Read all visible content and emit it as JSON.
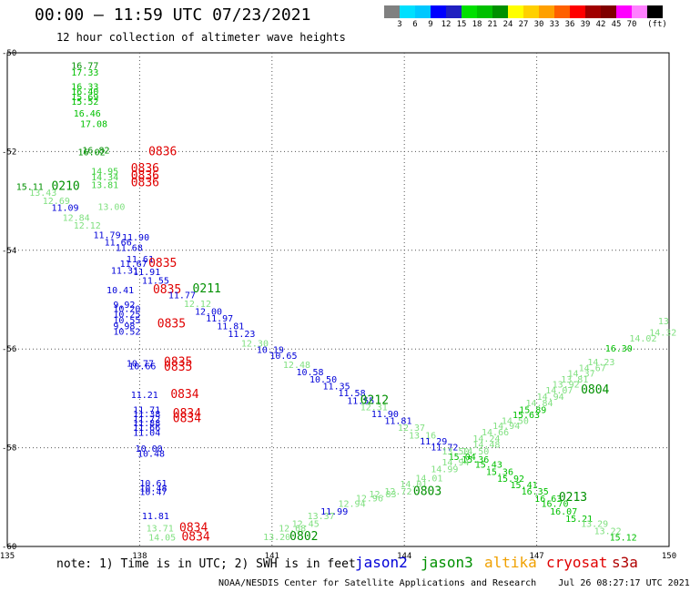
{
  "header": {
    "title": "00:00 – 11:59 UTC 07/23/2021",
    "subtitle": "12 hour collection of altimeter wave heights"
  },
  "colorbar": {
    "unit": "(ft)",
    "colors": [
      "#808080",
      "#00e0ff",
      "#00c8ff",
      "#0000ff",
      "#2020c0",
      "#00e000",
      "#00c000",
      "#009000",
      "#ffff00",
      "#ffd000",
      "#ffa000",
      "#ff6000",
      "#ff0000",
      "#a00000",
      "#800000",
      "#ff00ff",
      "#ff80ff",
      "#000000"
    ],
    "labels": [
      "3",
      "6",
      "9",
      "12",
      "15",
      "18",
      "21",
      "24",
      "27",
      "30",
      "33",
      "36",
      "39",
      "42",
      "45",
      "70"
    ]
  },
  "axes": {
    "lon": {
      "min": 135,
      "max": 150,
      "ticks": [
        "135",
        "138",
        "141",
        "144",
        "147",
        "150"
      ]
    },
    "lat": {
      "min": -60,
      "max": -50,
      "ticks": [
        "-50",
        "-52",
        "-54",
        "-56",
        "-58",
        "-60"
      ]
    }
  },
  "map_data": {
    "labels": [
      {
        "t": "16.77",
        "lon": 136.45,
        "lat": -50.32,
        "c": "#009000"
      },
      {
        "t": "17.33",
        "lon": 136.45,
        "lat": -50.46,
        "c": "#00c000"
      },
      {
        "t": "16.33",
        "lon": 136.45,
        "lat": -50.75,
        "c": "#00c000"
      },
      {
        "t": "16.40",
        "lon": 136.45,
        "lat": -50.85,
        "c": "#00c000"
      },
      {
        "t": "15.69",
        "lon": 136.45,
        "lat": -50.96,
        "c": "#00c000"
      },
      {
        "t": "15.52",
        "lon": 136.45,
        "lat": -51.05,
        "c": "#00c000"
      },
      {
        "t": "16.46",
        "lon": 136.5,
        "lat": -51.29,
        "c": "#00c000"
      },
      {
        "t": "17.08",
        "lon": 136.65,
        "lat": -51.5,
        "c": "#00c000"
      },
      {
        "t": "16.82",
        "lon": 136.7,
        "lat": -52.04,
        "c": "#009000"
      },
      {
        "t": "16.02",
        "lon": 136.6,
        "lat": -52.08,
        "c": "#009000"
      },
      {
        "t": "0836",
        "lon": 138.2,
        "lat": -52.08,
        "c": "#e00000",
        "big": 1
      },
      {
        "t": "14.95",
        "lon": 136.9,
        "lat": -52.46,
        "c": "#40d040"
      },
      {
        "t": "14.34",
        "lon": 136.9,
        "lat": -52.58,
        "c": "#40d040"
      },
      {
        "t": "13.81",
        "lon": 136.9,
        "lat": -52.74,
        "c": "#40d040"
      },
      {
        "t": "0836",
        "lon": 137.8,
        "lat": -52.42,
        "c": "#e00000",
        "big": 1
      },
      {
        "t": "0836",
        "lon": 137.8,
        "lat": -52.56,
        "c": "#e00000",
        "big": 1
      },
      {
        "t": "0836",
        "lon": 137.8,
        "lat": -52.7,
        "c": "#e00000",
        "big": 1
      },
      {
        "t": "15.11",
        "lon": 135.2,
        "lat": -52.78,
        "c": "#009000"
      },
      {
        "t": "0210",
        "lon": 136.0,
        "lat": -52.78,
        "c": "#009000",
        "big": 1
      },
      {
        "t": "13.43",
        "lon": 135.5,
        "lat": -52.9,
        "c": "#80e080"
      },
      {
        "t": "12.69",
        "lon": 135.8,
        "lat": -53.06,
        "c": "#80e080"
      },
      {
        "t": "11.09",
        "lon": 136.0,
        "lat": -53.2,
        "c": "#0000d8"
      },
      {
        "t": "13.00",
        "lon": 137.05,
        "lat": -53.18,
        "c": "#80e080"
      },
      {
        "t": "12.84",
        "lon": 136.25,
        "lat": -53.4,
        "c": "#80e080"
      },
      {
        "t": "12.12",
        "lon": 136.5,
        "lat": -53.56,
        "c": "#80e080"
      },
      {
        "t": "11.79",
        "lon": 136.95,
        "lat": -53.75,
        "c": "#0000d8"
      },
      {
        "t": "11.90",
        "lon": 137.6,
        "lat": -53.8,
        "c": "#0000d8"
      },
      {
        "t": "11.66",
        "lon": 137.2,
        "lat": -53.9,
        "c": "#0000d8"
      },
      {
        "t": "11.68",
        "lon": 137.45,
        "lat": -54.01,
        "c": "#0000d8"
      },
      {
        "t": "11.61",
        "lon": 137.7,
        "lat": -54.24,
        "c": "#0000d8"
      },
      {
        "t": "11.67",
        "lon": 137.55,
        "lat": -54.34,
        "c": "#0000d8"
      },
      {
        "t": "0835",
        "lon": 138.2,
        "lat": -54.34,
        "c": "#e00000",
        "big": 1
      },
      {
        "t": "11.31",
        "lon": 137.35,
        "lat": -54.47,
        "c": "#0000d8"
      },
      {
        "t": "11.91",
        "lon": 137.85,
        "lat": -54.5,
        "c": "#0000d8"
      },
      {
        "t": "11.55",
        "lon": 138.05,
        "lat": -54.68,
        "c": "#0000d8"
      },
      {
        "t": "10.41",
        "lon": 137.25,
        "lat": -54.87,
        "c": "#0000d8"
      },
      {
        "t": "0835",
        "lon": 138.3,
        "lat": -54.87,
        "c": "#e00000",
        "big": 1
      },
      {
        "t": "11.77",
        "lon": 138.65,
        "lat": -54.97,
        "c": "#0000d8"
      },
      {
        "t": "0211",
        "lon": 139.2,
        "lat": -54.85,
        "c": "#009000",
        "big": 1
      },
      {
        "t": "9.92",
        "lon": 137.4,
        "lat": -55.17,
        "c": "#0000d8"
      },
      {
        "t": "12.12",
        "lon": 139.0,
        "lat": -55.15,
        "c": "#80e080"
      },
      {
        "t": "10.20",
        "lon": 137.4,
        "lat": -55.25,
        "c": "#0000d8"
      },
      {
        "t": "12.00",
        "lon": 139.25,
        "lat": -55.3,
        "c": "#0000d8"
      },
      {
        "t": "10.25",
        "lon": 137.4,
        "lat": -55.36,
        "c": "#0000d8"
      },
      {
        "t": "11.97",
        "lon": 139.5,
        "lat": -55.44,
        "c": "#0000d8"
      },
      {
        "t": "10.55",
        "lon": 137.4,
        "lat": -55.48,
        "c": "#0000d8"
      },
      {
        "t": "0835",
        "lon": 138.4,
        "lat": -55.56,
        "c": "#e00000",
        "big": 1
      },
      {
        "t": "9.98",
        "lon": 137.4,
        "lat": -55.6,
        "c": "#0000d8"
      },
      {
        "t": "11.81",
        "lon": 139.75,
        "lat": -55.6,
        "c": "#0000d8"
      },
      {
        "t": "10.52",
        "lon": 137.4,
        "lat": -55.71,
        "c": "#0000d8"
      },
      {
        "t": "11.23",
        "lon": 140.0,
        "lat": -55.76,
        "c": "#0000d8"
      },
      {
        "t": "12.30",
        "lon": 140.3,
        "lat": -55.95,
        "c": "#80e080"
      },
      {
        "t": "10.19",
        "lon": 140.65,
        "lat": -56.08,
        "c": "#0000d8"
      },
      {
        "t": "10.65",
        "lon": 140.95,
        "lat": -56.2,
        "c": "#0000d8"
      },
      {
        "t": "10.77",
        "lon": 137.7,
        "lat": -56.36,
        "c": "#0000d8"
      },
      {
        "t": "10.66",
        "lon": 137.75,
        "lat": -56.41,
        "c": "#0000d8"
      },
      {
        "t": "0835",
        "lon": 138.55,
        "lat": -56.34,
        "c": "#e00000",
        "big": 1
      },
      {
        "t": "0835",
        "lon": 138.55,
        "lat": -56.44,
        "c": "#e00000",
        "big": 1
      },
      {
        "t": "12.48",
        "lon": 141.25,
        "lat": -56.38,
        "c": "#80e080"
      },
      {
        "t": "10.58",
        "lon": 141.55,
        "lat": -56.53,
        "c": "#0000d8"
      },
      {
        "t": "10.50",
        "lon": 141.85,
        "lat": -56.68,
        "c": "#0000d8"
      },
      {
        "t": "11.35",
        "lon": 142.15,
        "lat": -56.82,
        "c": "#0000d8"
      },
      {
        "t": "11.21",
        "lon": 137.8,
        "lat": -56.99,
        "c": "#0000d8"
      },
      {
        "t": "0834",
        "lon": 138.7,
        "lat": -56.99,
        "c": "#e00000",
        "big": 1
      },
      {
        "t": "11.58",
        "lon": 142.5,
        "lat": -56.96,
        "c": "#0000d8"
      },
      {
        "t": "11.55",
        "lon": 142.7,
        "lat": -57.11,
        "c": "#0000d8"
      },
      {
        "t": "0212",
        "lon": 143.0,
        "lat": -57.11,
        "c": "#009000",
        "big": 1
      },
      {
        "t": "12.31",
        "lon": 143.0,
        "lat": -57.24,
        "c": "#80e080"
      },
      {
        "t": "11.71",
        "lon": 137.85,
        "lat": -57.3,
        "c": "#0000d8"
      },
      {
        "t": "11.38",
        "lon": 137.85,
        "lat": -57.38,
        "c": "#0000d8"
      },
      {
        "t": "0834",
        "lon": 138.75,
        "lat": -57.38,
        "c": "#e00000",
        "big": 1
      },
      {
        "t": "11.90",
        "lon": 143.25,
        "lat": -57.38,
        "c": "#0000d8"
      },
      {
        "t": "11.72",
        "lon": 137.85,
        "lat": -57.48,
        "c": "#0000d8"
      },
      {
        "t": "0834",
        "lon": 138.75,
        "lat": -57.48,
        "c": "#e00000",
        "big": 1
      },
      {
        "t": "11.81",
        "lon": 143.55,
        "lat": -57.52,
        "c": "#0000d8"
      },
      {
        "t": "11.88",
        "lon": 137.85,
        "lat": -57.56,
        "c": "#0000d8"
      },
      {
        "t": "11.66",
        "lon": 137.85,
        "lat": -57.66,
        "c": "#0000d8"
      },
      {
        "t": "12.37",
        "lon": 143.85,
        "lat": -57.66,
        "c": "#80e080"
      },
      {
        "t": "11.04",
        "lon": 137.85,
        "lat": -57.76,
        "c": "#0000d8"
      },
      {
        "t": "13.16",
        "lon": 144.1,
        "lat": -57.81,
        "c": "#80e080"
      },
      {
        "t": "11.29",
        "lon": 144.35,
        "lat": -57.93,
        "c": "#0000d8"
      },
      {
        "t": "11.72",
        "lon": 144.6,
        "lat": -58.05,
        "c": "#0000d8"
      },
      {
        "t": "10.00",
        "lon": 137.9,
        "lat": -58.08,
        "c": "#0000d8"
      },
      {
        "t": "10.48",
        "lon": 137.95,
        "lat": -58.18,
        "c": "#0000d8"
      },
      {
        "t": "13.50",
        "lon": 144.85,
        "lat": -58.14,
        "c": "#80e080"
      },
      {
        "t": "14.50",
        "lon": 145.3,
        "lat": -58.14,
        "c": "#80e080"
      },
      {
        "t": "14.48",
        "lon": 145.55,
        "lat": -58.0,
        "c": "#80e080"
      },
      {
        "t": "15.04",
        "lon": 145.0,
        "lat": -58.25,
        "c": "#00c000"
      },
      {
        "t": "15.36",
        "lon": 145.3,
        "lat": -58.3,
        "c": "#00c000"
      },
      {
        "t": "14.94",
        "lon": 144.85,
        "lat": -58.36,
        "c": "#80e080"
      },
      {
        "t": "15.43",
        "lon": 145.6,
        "lat": -58.4,
        "c": "#00c000"
      },
      {
        "t": "15.36",
        "lon": 145.85,
        "lat": -58.55,
        "c": "#00c000"
      },
      {
        "t": "14.99",
        "lon": 144.6,
        "lat": -58.5,
        "c": "#80e080"
      },
      {
        "t": "15.92",
        "lon": 146.1,
        "lat": -58.69,
        "c": "#00c000"
      },
      {
        "t": "14.01",
        "lon": 144.25,
        "lat": -58.68,
        "c": "#80e080"
      },
      {
        "t": "10.61",
        "lon": 138.0,
        "lat": -58.78,
        "c": "#0000d8"
      },
      {
        "t": "10.48",
        "lon": 138.0,
        "lat": -58.88,
        "c": "#0000d8"
      },
      {
        "t": "10.47",
        "lon": 138.0,
        "lat": -58.96,
        "c": "#0000d8"
      },
      {
        "t": "14.01",
        "lon": 143.9,
        "lat": -58.8,
        "c": "#80e080"
      },
      {
        "t": "15.41",
        "lon": 146.4,
        "lat": -58.82,
        "c": "#00c000"
      },
      {
        "t": "12.72",
        "lon": 143.55,
        "lat": -58.95,
        "c": "#80e080"
      },
      {
        "t": "0803",
        "lon": 144.2,
        "lat": -58.96,
        "c": "#009000",
        "big": 1
      },
      {
        "t": "12.83",
        "lon": 143.2,
        "lat": -59.0,
        "c": "#80e080"
      },
      {
        "t": "16.35",
        "lon": 146.65,
        "lat": -58.95,
        "c": "#00c000"
      },
      {
        "t": "12.96",
        "lon": 142.9,
        "lat": -59.09,
        "c": "#80e080"
      },
      {
        "t": "16.63",
        "lon": 146.95,
        "lat": -59.1,
        "c": "#00c000"
      },
      {
        "t": "0213",
        "lon": 147.5,
        "lat": -59.08,
        "c": "#009000",
        "big": 1
      },
      {
        "t": "12.94",
        "lon": 142.5,
        "lat": -59.2,
        "c": "#80e080"
      },
      {
        "t": "16.70",
        "lon": 147.1,
        "lat": -59.2,
        "c": "#00c000"
      },
      {
        "t": "11.99",
        "lon": 142.1,
        "lat": -59.35,
        "c": "#0000d8"
      },
      {
        "t": "16.07",
        "lon": 147.3,
        "lat": -59.35,
        "c": "#00c000"
      },
      {
        "t": "13.37",
        "lon": 141.8,
        "lat": -59.45,
        "c": "#80e080"
      },
      {
        "t": "11.81",
        "lon": 138.05,
        "lat": -59.45,
        "c": "#0000d8"
      },
      {
        "t": "15.21",
        "lon": 147.65,
        "lat": -59.5,
        "c": "#00c000"
      },
      {
        "t": "12.45",
        "lon": 141.45,
        "lat": -59.6,
        "c": "#80e080"
      },
      {
        "t": "13.29",
        "lon": 148.0,
        "lat": -59.6,
        "c": "#80e080"
      },
      {
        "t": "13.71",
        "lon": 138.15,
        "lat": -59.7,
        "c": "#80e080"
      },
      {
        "t": "0834",
        "lon": 138.9,
        "lat": -59.7,
        "c": "#e00000",
        "big": 1
      },
      {
        "t": "12.68",
        "lon": 141.15,
        "lat": -59.7,
        "c": "#80e080"
      },
      {
        "t": "13.22",
        "lon": 148.3,
        "lat": -59.75,
        "c": "#80e080"
      },
      {
        "t": "13.20",
        "lon": 140.8,
        "lat": -59.87,
        "c": "#80e080"
      },
      {
        "t": "0802",
        "lon": 141.4,
        "lat": -59.87,
        "c": "#009000",
        "big": 1
      },
      {
        "t": "14.05",
        "lon": 138.2,
        "lat": -59.88,
        "c": "#80e080"
      },
      {
        "t": "0834",
        "lon": 138.95,
        "lat": -59.88,
        "c": "#e00000",
        "big": 1
      },
      {
        "t": "15.12",
        "lon": 148.65,
        "lat": -59.88,
        "c": "#00c000"
      },
      {
        "t": "14.24",
        "lon": 145.55,
        "lat": -57.88,
        "c": "#80e080"
      },
      {
        "t": "14.66",
        "lon": 145.75,
        "lat": -57.75,
        "c": "#80e080"
      },
      {
        "t": "14.94",
        "lon": 146.0,
        "lat": -57.62,
        "c": "#80e080"
      },
      {
        "t": "14.50",
        "lon": 146.2,
        "lat": -57.52,
        "c": "#80e080"
      },
      {
        "t": "15.63",
        "lon": 146.45,
        "lat": -57.4,
        "c": "#00c000"
      },
      {
        "t": "15.89",
        "lon": 146.6,
        "lat": -57.3,
        "c": "#00c000"
      },
      {
        "t": "14.84",
        "lon": 146.75,
        "lat": -57.16,
        "c": "#80e080"
      },
      {
        "t": "14.94",
        "lon": 147.0,
        "lat": -57.03,
        "c": "#80e080"
      },
      {
        "t": "14.07",
        "lon": 147.2,
        "lat": -56.9,
        "c": "#80e080"
      },
      {
        "t": "0804",
        "lon": 148.0,
        "lat": -56.9,
        "c": "#009000",
        "big": 1
      },
      {
        "t": "13.92",
        "lon": 147.35,
        "lat": -56.78,
        "c": "#80e080"
      },
      {
        "t": "13.81",
        "lon": 147.55,
        "lat": -56.68,
        "c": "#80e080"
      },
      {
        "t": "14.37",
        "lon": 147.7,
        "lat": -56.56,
        "c": "#80e080"
      },
      {
        "t": "14.67",
        "lon": 147.95,
        "lat": -56.45,
        "c": "#80e080"
      },
      {
        "t": "14.23",
        "lon": 148.15,
        "lat": -56.33,
        "c": "#80e080"
      },
      {
        "t": "16.30",
        "lon": 148.55,
        "lat": -56.05,
        "c": "#00c000"
      },
      {
        "t": "14.02",
        "lon": 149.1,
        "lat": -55.85,
        "c": "#80e080"
      },
      {
        "t": "14.32",
        "lon": 149.55,
        "lat": -55.73,
        "c": "#80e080"
      },
      {
        "t": "13",
        "lon": 149.75,
        "lat": -55.5,
        "c": "#80e080"
      }
    ]
  },
  "legend": {
    "jason2": "jason2",
    "jason3": "jason3",
    "altika": "altika",
    "cryosat": "cryosat",
    "s3a": "s3a"
  },
  "note": "note: 1) Time is in UTC; 2) SWH is in feet",
  "footer": "NOAA/NESDIS Center for Satellite Applications and Research    Jul 26 08:27:17 UTC 2021"
}
